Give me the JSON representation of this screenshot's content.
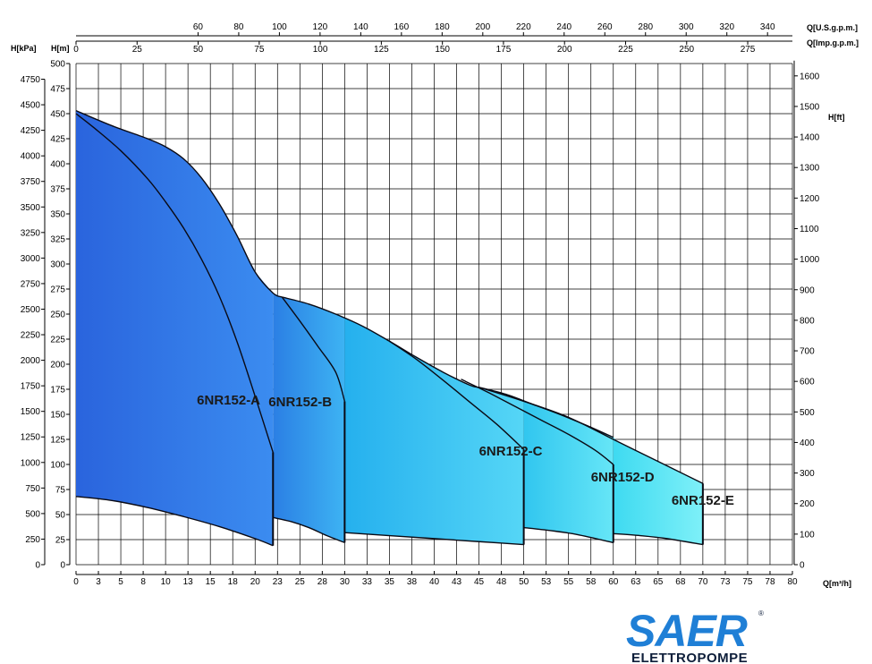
{
  "chart_data": {
    "type": "area",
    "axes": {
      "bottom": {
        "label": "Q[m³/h]",
        "range": [
          0,
          80
        ],
        "ticks": [
          "0",
          "3",
          "5",
          "8",
          "10",
          "13",
          "15",
          "18",
          "20",
          "23",
          "25",
          "28",
          "30",
          "33",
          "35",
          "38",
          "40",
          "43",
          "45",
          "48",
          "50",
          "53",
          "55",
          "58",
          "60",
          "63",
          "65",
          "68",
          "70",
          "73",
          "75",
          "78",
          "80"
        ]
      },
      "left_m": {
        "label": "H[m]",
        "range": [
          0,
          500
        ],
        "ticks": [
          "0",
          "25",
          "50",
          "75",
          "100",
          "125",
          "150",
          "175",
          "200",
          "225",
          "250",
          "275",
          "300",
          "325",
          "350",
          "375",
          "400",
          "425",
          "450",
          "475",
          "500"
        ]
      },
      "left_kpa": {
        "label": "H[kPa]",
        "ticks": [
          "0",
          "250",
          "500",
          "750",
          "1000",
          "1250",
          "1500",
          "1750",
          "2000",
          "2250",
          "2500",
          "2750",
          "3000",
          "3250",
          "3500",
          "3750",
          "4000",
          "4250",
          "4500",
          "4750"
        ]
      },
      "right_ft": {
        "label": "H[ft]",
        "ticks": [
          "0",
          "100",
          "200",
          "300",
          "400",
          "500",
          "600",
          "700",
          "800",
          "900",
          "1000",
          "1100",
          "1200",
          "1300",
          "1400",
          "1500",
          "1600"
        ]
      },
      "top_us": {
        "label": "Q[U.S.g.p.m.]",
        "ticks": [
          "60",
          "80",
          "100",
          "120",
          "140",
          "160",
          "180",
          "200",
          "220",
          "240",
          "260",
          "280",
          "300",
          "320",
          "340"
        ]
      },
      "top_imp": {
        "label": "Q[Imp.g.p.m.]",
        "ticks": [
          "0",
          "25",
          "50",
          "75",
          "100",
          "125",
          "150",
          "175",
          "200",
          "225",
          "250",
          "275"
        ]
      }
    },
    "grid": true,
    "series": [
      {
        "name": "6NR152-A",
        "color": "#2a6fe0",
        "upper": [
          [
            0,
            450
          ],
          [
            2,
            436
          ],
          [
            5,
            413
          ],
          [
            8,
            385
          ],
          [
            10,
            362
          ],
          [
            12,
            336
          ],
          [
            14,
            305
          ],
          [
            16,
            268
          ],
          [
            18,
            222
          ],
          [
            20,
            168
          ],
          [
            22,
            112
          ]
        ],
        "lower": [
          [
            0,
            68
          ],
          [
            4,
            64
          ],
          [
            8,
            57
          ],
          [
            12,
            48
          ],
          [
            16,
            38
          ],
          [
            20,
            26
          ],
          [
            22,
            19
          ]
        ]
      },
      {
        "name": "6NR152-B",
        "color": "#2e8ee6",
        "upper": [
          [
            0,
            453
          ],
          [
            4,
            438
          ],
          [
            8,
            425
          ],
          [
            10,
            417
          ],
          [
            12,
            405
          ],
          [
            14,
            386
          ],
          [
            16,
            360
          ],
          [
            18,
            328
          ],
          [
            20,
            292
          ],
          [
            22,
            271
          ],
          [
            23,
            267
          ]
        ],
        "lower": [
          [
            22,
            47
          ],
          [
            24,
            43
          ],
          [
            26,
            37
          ],
          [
            28,
            29
          ],
          [
            30,
            22
          ]
        ],
        "right": [
          [
            23,
            267
          ],
          [
            25,
            243
          ],
          [
            27,
            218
          ],
          [
            29,
            192
          ],
          [
            30,
            163
          ]
        ]
      },
      {
        "name": "6NR152-C",
        "color": "#2cb4ee",
        "upper": [
          [
            23,
            267
          ],
          [
            26,
            260
          ],
          [
            29,
            250
          ],
          [
            32,
            238
          ],
          [
            35,
            223
          ],
          [
            38,
            207
          ],
          [
            41,
            192
          ],
          [
            44,
            179
          ],
          [
            45,
            177
          ]
        ],
        "lower": [
          [
            30,
            32
          ],
          [
            35,
            29
          ],
          [
            40,
            26
          ],
          [
            45,
            23
          ],
          [
            50,
            20
          ]
        ],
        "right": [
          [
            35,
            223
          ],
          [
            38,
            205
          ],
          [
            41,
            184
          ],
          [
            44,
            162
          ],
          [
            47,
            140
          ],
          [
            50,
            115
          ]
        ]
      },
      {
        "name": "6NR152-D",
        "color": "#36ccef",
        "upper": [
          [
            45,
            177
          ],
          [
            48,
            170
          ],
          [
            51,
            160
          ],
          [
            54,
            150
          ],
          [
            57,
            139
          ],
          [
            60,
            127
          ]
        ],
        "lower": [
          [
            50,
            37
          ],
          [
            53,
            34
          ],
          [
            56,
            30
          ],
          [
            60,
            22
          ]
        ],
        "right": [
          [
            43,
            185
          ],
          [
            46,
            172
          ],
          [
            49,
            158
          ],
          [
            52,
            144
          ],
          [
            55,
            130
          ],
          [
            58,
            114
          ],
          [
            60,
            100
          ]
        ]
      },
      {
        "name": "6NR152-E",
        "color": "#45e2f2",
        "upper": [
          [
            45,
            177
          ],
          [
            50,
            163
          ],
          [
            55,
            147
          ],
          [
            60,
            125
          ],
          [
            65,
            103
          ],
          [
            70,
            81
          ]
        ],
        "lower": [
          [
            60,
            31
          ],
          [
            63,
            29
          ],
          [
            66,
            26
          ],
          [
            70,
            20
          ]
        ]
      }
    ]
  },
  "logo": {
    "brand": "SAER",
    "sub": "ELETTROPOMPE",
    "mark": "®"
  }
}
